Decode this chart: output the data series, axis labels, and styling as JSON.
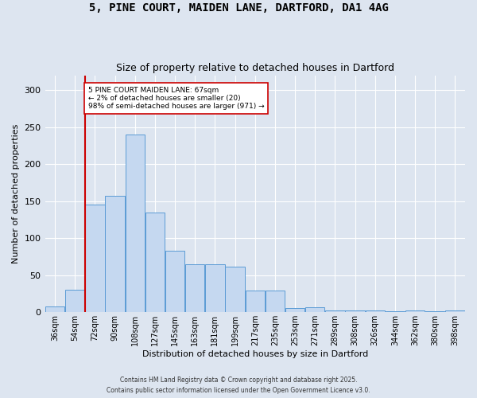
{
  "title_line1": "5, PINE COURT, MAIDEN LANE, DARTFORD, DA1 4AG",
  "title_line2": "Size of property relative to detached houses in Dartford",
  "xlabel": "Distribution of detached houses by size in Dartford",
  "ylabel": "Number of detached properties",
  "bar_labels": [
    "36sqm",
    "54sqm",
    "72sqm",
    "90sqm",
    "108sqm",
    "127sqm",
    "145sqm",
    "163sqm",
    "181sqm",
    "199sqm",
    "217sqm",
    "235sqm",
    "253sqm",
    "271sqm",
    "289sqm",
    "308sqm",
    "326sqm",
    "344sqm",
    "362sqm",
    "380sqm",
    "398sqm"
  ],
  "bar_values": [
    8,
    30,
    145,
    157,
    240,
    135,
    83,
    65,
    65,
    62,
    29,
    29,
    6,
    7,
    3,
    2,
    3,
    1,
    3,
    1,
    3
  ],
  "bar_color": "#c5d8f0",
  "bar_edge_color": "#5b9bd5",
  "highlight_index": 2,
  "highlight_color": "#cc0000",
  "ylim": [
    0,
    320
  ],
  "yticks": [
    0,
    50,
    100,
    150,
    200,
    250,
    300
  ],
  "annotation_text": "5 PINE COURT MAIDEN LANE: 67sqm\n← 2% of detached houses are smaller (20)\n98% of semi-detached houses are larger (971) →",
  "annotation_box_color": "#ffffff",
  "annotation_box_edge": "#cc0000",
  "footnote1": "Contains HM Land Registry data © Crown copyright and database right 2025.",
  "footnote2": "Contains public sector information licensed under the Open Government Licence v3.0.",
  "bg_color": "#dde5f0",
  "grid_color": "#ffffff"
}
